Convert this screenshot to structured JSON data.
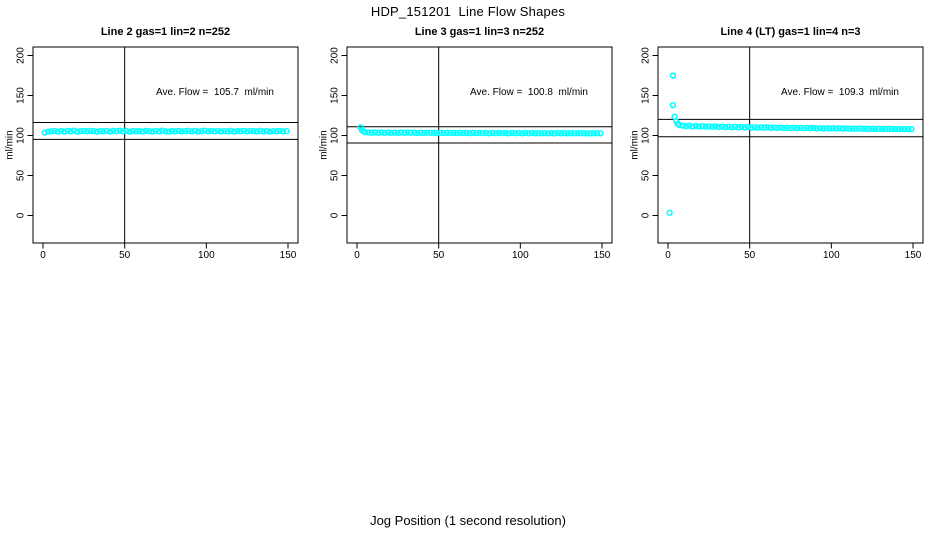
{
  "figure": {
    "title": "HDP_151201  Line Flow Shapes",
    "x_axis_label": "Jog Position (1 second resolution)"
  },
  "axes": {
    "y_label": "ml/min",
    "x_ticks": [
      "0",
      "50",
      "100",
      "150"
    ],
    "x_tick_values": [
      0,
      50,
      100,
      150
    ],
    "y_ticks": [
      "0",
      "50",
      "100",
      "150",
      "200"
    ],
    "y_tick_values": [
      0,
      50,
      100,
      150,
      200
    ],
    "x_range": [
      0,
      150
    ],
    "y_range": [
      0,
      200
    ]
  },
  "colors": {
    "points": "#00FFFF",
    "lines": "#000000",
    "background": "#FFFFFF",
    "text": "#000000"
  },
  "chart_data": [
    {
      "type": "scatter",
      "title": "Line 2 gas=1 lin=2 n=252",
      "n": 252,
      "ave_flow": 105.7,
      "ave_flow_label": "Ave. Flow =  105.7  ml/min",
      "vline_x": 50,
      "hline_upper": 116.3,
      "hline_lower": 95.1,
      "points": [
        [
          1,
          103.6
        ],
        [
          3,
          104.8
        ],
        [
          5,
          105.2
        ],
        [
          7,
          105.7
        ],
        [
          9,
          105.0
        ],
        [
          11,
          105.6
        ],
        [
          13,
          104.9
        ],
        [
          15,
          105.8
        ],
        [
          17,
          105.3
        ],
        [
          19,
          106.0
        ],
        [
          21,
          104.9
        ],
        [
          23,
          105.5
        ],
        [
          25,
          105.8
        ],
        [
          27,
          105.1
        ],
        [
          29,
          105.9
        ],
        [
          31,
          105.4
        ],
        [
          33,
          104.8
        ],
        [
          35,
          105.6
        ],
        [
          37,
          105.2
        ],
        [
          39,
          105.9
        ],
        [
          41,
          105.0
        ],
        [
          43,
          105.7
        ],
        [
          45,
          105.3
        ],
        [
          47,
          106.0
        ],
        [
          49,
          105.1
        ],
        [
          51,
          105.6
        ],
        [
          53,
          104.9
        ],
        [
          55,
          105.8
        ],
        [
          57,
          105.2
        ],
        [
          59,
          105.5
        ],
        [
          61,
          105.0
        ],
        [
          63,
          105.9
        ],
        [
          65,
          105.4
        ],
        [
          67,
          104.8
        ],
        [
          69,
          105.7
        ],
        [
          71,
          105.1
        ],
        [
          73,
          106.0
        ],
        [
          75,
          105.3
        ],
        [
          77,
          104.9
        ],
        [
          79,
          105.6
        ],
        [
          81,
          105.2
        ],
        [
          83,
          105.8
        ],
        [
          85,
          105.0
        ],
        [
          87,
          105.5
        ],
        [
          89,
          105.9
        ],
        [
          91,
          105.1
        ],
        [
          93,
          105.7
        ],
        [
          95,
          104.9
        ],
        [
          97,
          105.4
        ],
        [
          99,
          106.0
        ],
        [
          101,
          105.2
        ],
        [
          103,
          105.6
        ],
        [
          105,
          105.1
        ],
        [
          107,
          105.8
        ],
        [
          109,
          105.0
        ],
        [
          111,
          105.5
        ],
        [
          113,
          105.3
        ],
        [
          115,
          105.9
        ],
        [
          117,
          104.9
        ],
        [
          119,
          105.6
        ],
        [
          121,
          105.2
        ],
        [
          123,
          105.7
        ],
        [
          125,
          105.0
        ],
        [
          127,
          105.8
        ],
        [
          129,
          105.4
        ],
        [
          131,
          105.1
        ],
        [
          133,
          105.9
        ],
        [
          135,
          105.3
        ],
        [
          137,
          105.6
        ],
        [
          139,
          104.9
        ],
        [
          141,
          105.5
        ],
        [
          143,
          105.2
        ],
        [
          145,
          105.7
        ],
        [
          147,
          105.1
        ],
        [
          149,
          105.4
        ]
      ]
    },
    {
      "type": "scatter",
      "title": "Line 3 gas=1 lin=3 n=252",
      "n": 252,
      "ave_flow": 100.8,
      "ave_flow_label": "Ave. Flow =  100.8  ml/min",
      "vline_x": 50,
      "hline_upper": 110.9,
      "hline_lower": 90.7,
      "points": [
        [
          2,
          110.3
        ],
        [
          3,
          106.8
        ],
        [
          4,
          105.0
        ],
        [
          5,
          104.2
        ],
        [
          7,
          103.8
        ],
        [
          9,
          103.5
        ],
        [
          11,
          103.9
        ],
        [
          13,
          103.4
        ],
        [
          15,
          103.7
        ],
        [
          17,
          103.3
        ],
        [
          19,
          103.8
        ],
        [
          21,
          103.4
        ],
        [
          23,
          103.6
        ],
        [
          25,
          103.2
        ],
        [
          27,
          103.7
        ],
        [
          29,
          103.3
        ],
        [
          31,
          103.6
        ],
        [
          33,
          103.4
        ],
        [
          35,
          103.5
        ],
        [
          37,
          103.1
        ],
        [
          39,
          103.6
        ],
        [
          41,
          103.2
        ],
        [
          43,
          103.5
        ],
        [
          45,
          103.3
        ],
        [
          47,
          103.4
        ],
        [
          49,
          103.0
        ],
        [
          51,
          103.5
        ],
        [
          53,
          103.1
        ],
        [
          55,
          103.4
        ],
        [
          57,
          103.2
        ],
        [
          59,
          103.3
        ],
        [
          61,
          103.0
        ],
        [
          63,
          103.4
        ],
        [
          65,
          103.1
        ],
        [
          67,
          103.3
        ],
        [
          69,
          102.9
        ],
        [
          71,
          103.4
        ],
        [
          73,
          103.0
        ],
        [
          75,
          103.3
        ],
        [
          77,
          103.1
        ],
        [
          79,
          103.2
        ],
        [
          81,
          102.8
        ],
        [
          83,
          103.3
        ],
        [
          85,
          102.9
        ],
        [
          87,
          103.2
        ],
        [
          89,
          103.0
        ],
        [
          91,
          103.1
        ],
        [
          93,
          102.8
        ],
        [
          95,
          103.2
        ],
        [
          97,
          102.9
        ],
        [
          99,
          103.1
        ],
        [
          101,
          102.7
        ],
        [
          103,
          103.2
        ],
        [
          105,
          102.8
        ],
        [
          107,
          103.1
        ],
        [
          109,
          102.9
        ],
        [
          111,
          103.0
        ],
        [
          113,
          102.7
        ],
        [
          115,
          103.1
        ],
        [
          117,
          102.8
        ],
        [
          119,
          103.0
        ],
        [
          121,
          102.6
        ],
        [
          123,
          103.1
        ],
        [
          125,
          102.7
        ],
        [
          127,
          103.0
        ],
        [
          129,
          102.8
        ],
        [
          131,
          102.9
        ],
        [
          133,
          102.6
        ],
        [
          135,
          103.0
        ],
        [
          137,
          102.7
        ],
        [
          139,
          102.9
        ],
        [
          141,
          102.6
        ],
        [
          143,
          102.8
        ],
        [
          145,
          102.7
        ],
        [
          147,
          102.9
        ],
        [
          149,
          102.7
        ]
      ]
    },
    {
      "type": "scatter",
      "title": "Line 4 (LT) gas=1 lin=4 n=3",
      "n": 3,
      "ave_flow": 109.3,
      "ave_flow_label": "Ave. Flow =  109.3  ml/min",
      "vline_x": 50,
      "hline_upper": 120.2,
      "hline_lower": 98.4,
      "points": [
        [
          1,
          3.5
        ],
        [
          3,
          175.0
        ],
        [
          3,
          138.0
        ],
        [
          4,
          123.5
        ],
        [
          5,
          117.5
        ],
        [
          6,
          114.5
        ],
        [
          7,
          113.0
        ],
        [
          9,
          112.4
        ],
        [
          11,
          111.6
        ],
        [
          13,
          112.2
        ],
        [
          15,
          111.3
        ],
        [
          17,
          111.9
        ],
        [
          19,
          111.1
        ],
        [
          21,
          111.8
        ],
        [
          23,
          111.0
        ],
        [
          25,
          111.5
        ],
        [
          27,
          110.8
        ],
        [
          29,
          111.4
        ],
        [
          31,
          110.6
        ],
        [
          33,
          111.2
        ],
        [
          35,
          110.5
        ],
        [
          37,
          111.0
        ],
        [
          39,
          110.3
        ],
        [
          41,
          110.9
        ],
        [
          43,
          110.2
        ],
        [
          45,
          110.7
        ],
        [
          47,
          110.0
        ],
        [
          49,
          110.6
        ],
        [
          51,
          109.9
        ],
        [
          53,
          110.4
        ],
        [
          55,
          109.8
        ],
        [
          57,
          110.3
        ],
        [
          59,
          109.7
        ],
        [
          61,
          110.2
        ],
        [
          63,
          109.6
        ],
        [
          65,
          110.0
        ],
        [
          67,
          109.5
        ],
        [
          69,
          109.9
        ],
        [
          71,
          109.4
        ],
        [
          73,
          109.8
        ],
        [
          75,
          109.3
        ],
        [
          77,
          109.7
        ],
        [
          79,
          109.2
        ],
        [
          81,
          109.6
        ],
        [
          83,
          109.1
        ],
        [
          85,
          109.5
        ],
        [
          87,
          109.0
        ],
        [
          89,
          109.4
        ],
        [
          91,
          108.9
        ],
        [
          93,
          109.3
        ],
        [
          95,
          108.8
        ],
        [
          97,
          109.2
        ],
        [
          99,
          108.8
        ],
        [
          101,
          109.1
        ],
        [
          103,
          108.7
        ],
        [
          105,
          109.0
        ],
        [
          107,
          108.6
        ],
        [
          109,
          108.9
        ],
        [
          111,
          108.5
        ],
        [
          113,
          108.8
        ],
        [
          115,
          108.5
        ],
        [
          117,
          108.7
        ],
        [
          119,
          108.4
        ],
        [
          121,
          108.6
        ],
        [
          123,
          108.3
        ],
        [
          125,
          108.5
        ],
        [
          127,
          108.3
        ],
        [
          129,
          108.4
        ],
        [
          131,
          108.2
        ],
        [
          133,
          108.3
        ],
        [
          135,
          108.2
        ],
        [
          137,
          108.1
        ],
        [
          139,
          108.0
        ],
        [
          141,
          108.1
        ],
        [
          143,
          107.9
        ],
        [
          145,
          108.0
        ],
        [
          147,
          107.9
        ],
        [
          149,
          108.0
        ]
      ]
    }
  ]
}
